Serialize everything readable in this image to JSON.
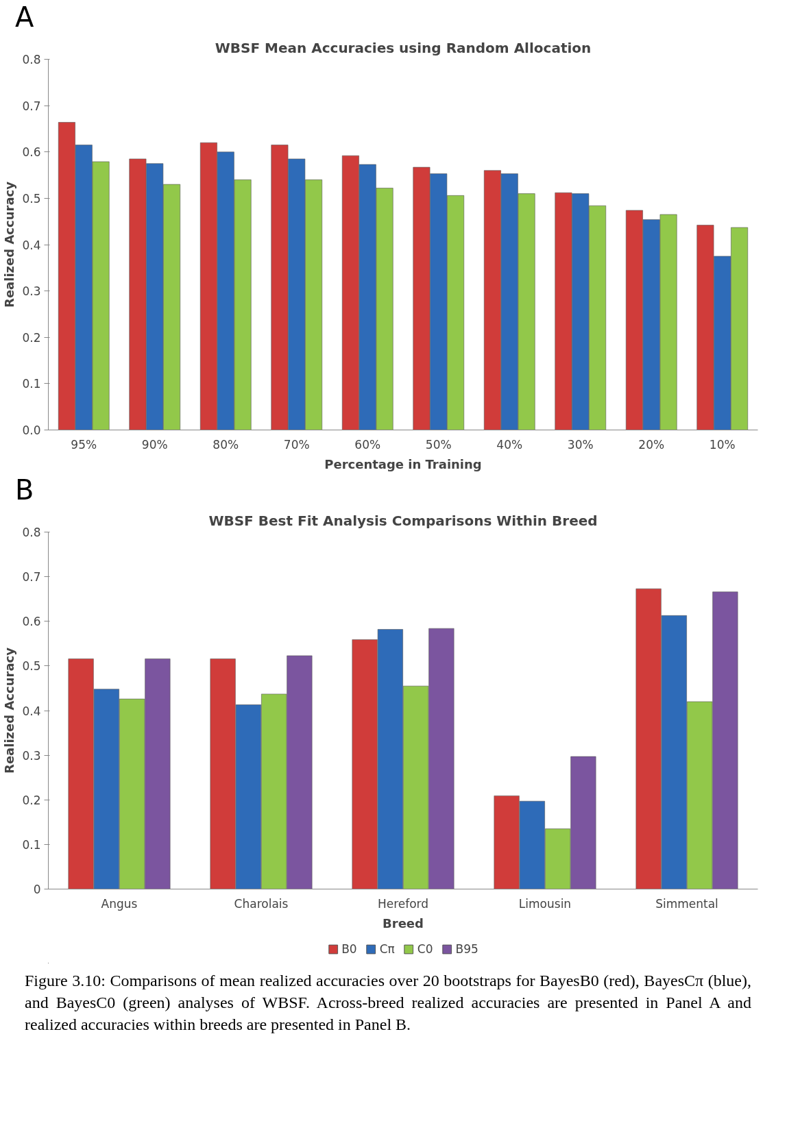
{
  "chart_data": [
    {
      "type": "bar",
      "title": "WBSF Mean Accuracies using Random Allocation",
      "xlabel": "Percentage in Training",
      "ylabel": "Realized Accuracy",
      "categories": [
        "95%",
        "90%",
        "80%",
        "70%",
        "60%",
        "50%",
        "40%",
        "30%",
        "20%",
        "10%"
      ],
      "series": [
        {
          "color": "#d03c3a",
          "values": [
            0.664,
            0.585,
            0.62,
            0.615,
            0.592,
            0.567,
            0.56,
            0.512,
            0.474,
            0.442
          ]
        },
        {
          "color": "#2e6bb8",
          "values": [
            0.615,
            0.575,
            0.6,
            0.585,
            0.573,
            0.553,
            0.553,
            0.51,
            0.454,
            0.375
          ]
        },
        {
          "color": "#92c84a",
          "values": [
            0.579,
            0.53,
            0.54,
            0.54,
            0.522,
            0.506,
            0.51,
            0.484,
            0.465,
            0.437
          ]
        }
      ],
      "ylim": [
        0,
        0.8
      ],
      "yticks": [
        {
          "value": 0,
          "label": "0.0"
        },
        0.1,
        0.2,
        0.3,
        0.4,
        0.5,
        0.6,
        0.7,
        0.8
      ],
      "grid": false,
      "legend": false,
      "annotations": [
        "A"
      ]
    },
    {
      "type": "bar",
      "title": "WBSF Best Fit Analysis Comparisons Within Breed",
      "xlabel": "Breed",
      "ylabel": "Realized Accuracy",
      "categories": [
        "Angus",
        "Charolais",
        "Hereford",
        "Limousin",
        "Simmental"
      ],
      "series": [
        {
          "name": "B0",
          "color": "#d03c3a",
          "values": [
            0.516,
            0.516,
            0.559,
            0.209,
            0.673
          ]
        },
        {
          "name": "Cπ",
          "color": "#2e6bb8",
          "values": [
            0.448,
            0.413,
            0.582,
            0.197,
            0.613
          ]
        },
        {
          "name": "C0",
          "color": "#92c84a",
          "values": [
            0.426,
            0.437,
            0.455,
            0.135,
            0.42
          ]
        },
        {
          "name": "B95",
          "color": "#7b559f",
          "values": [
            0.516,
            0.523,
            0.584,
            0.297,
            0.666
          ]
        }
      ],
      "ylim": [
        0,
        0.8
      ],
      "yticks": [
        0,
        0.1,
        0.2,
        0.3,
        0.4,
        0.5,
        0.6,
        0.7,
        0.8
      ],
      "grid": false,
      "legend": "bottom",
      "annotations": [
        "B",
        "Figure 3.10:  Comparisons of mean realized accuracies over 20 bootstraps for BayesB0 (red), BayesCπ (blue), and BayesC0 (green) analyses of WBSF.  Across-breed realized accuracies are presented in Panel A and realized accuracies within breeds are presented in Panel B."
      ]
    }
  ]
}
